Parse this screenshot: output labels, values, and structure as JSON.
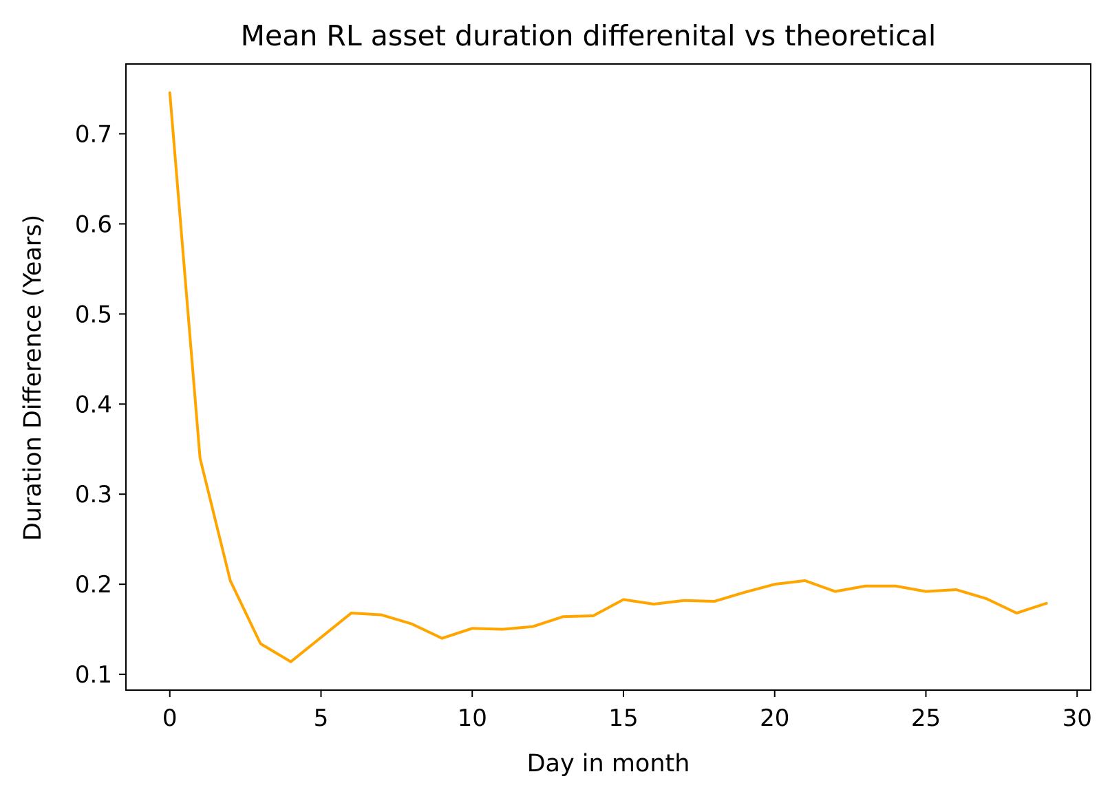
{
  "chart_data": {
    "type": "line",
    "title": "Mean RL asset duration differenital vs theoretical",
    "xlabel": "Day in month",
    "ylabel": "Duration Difference (Years)",
    "xlim": [
      -1.45,
      30.45
    ],
    "ylim": [
      0.0825,
      0.7775
    ],
    "xticks": [
      0,
      5,
      10,
      15,
      20,
      25,
      30
    ],
    "xtick_labels": [
      "0",
      "5",
      "10",
      "15",
      "20",
      "25",
      "30"
    ],
    "yticks": [
      0.1,
      0.2,
      0.3,
      0.4,
      0.5,
      0.6,
      0.7
    ],
    "ytick_labels": [
      "0.1",
      "0.2",
      "0.3",
      "0.4",
      "0.5",
      "0.6",
      "0.7"
    ],
    "grid": false,
    "series": [
      {
        "color": "#ffa500",
        "x": [
          0,
          1,
          2,
          3,
          4,
          5,
          6,
          7,
          8,
          9,
          10,
          11,
          12,
          13,
          14,
          15,
          16,
          17,
          18,
          19,
          20,
          21,
          22,
          23,
          24,
          25,
          26,
          27,
          28,
          29
        ],
        "y": [
          0.746,
          0.34,
          0.204,
          0.134,
          0.114,
          0.141,
          0.168,
          0.166,
          0.156,
          0.14,
          0.151,
          0.15,
          0.153,
          0.164,
          0.165,
          0.183,
          0.178,
          0.182,
          0.181,
          0.191,
          0.2,
          0.204,
          0.192,
          0.198,
          0.198,
          0.192,
          0.194,
          0.184,
          0.168,
          0.179
        ]
      }
    ]
  }
}
